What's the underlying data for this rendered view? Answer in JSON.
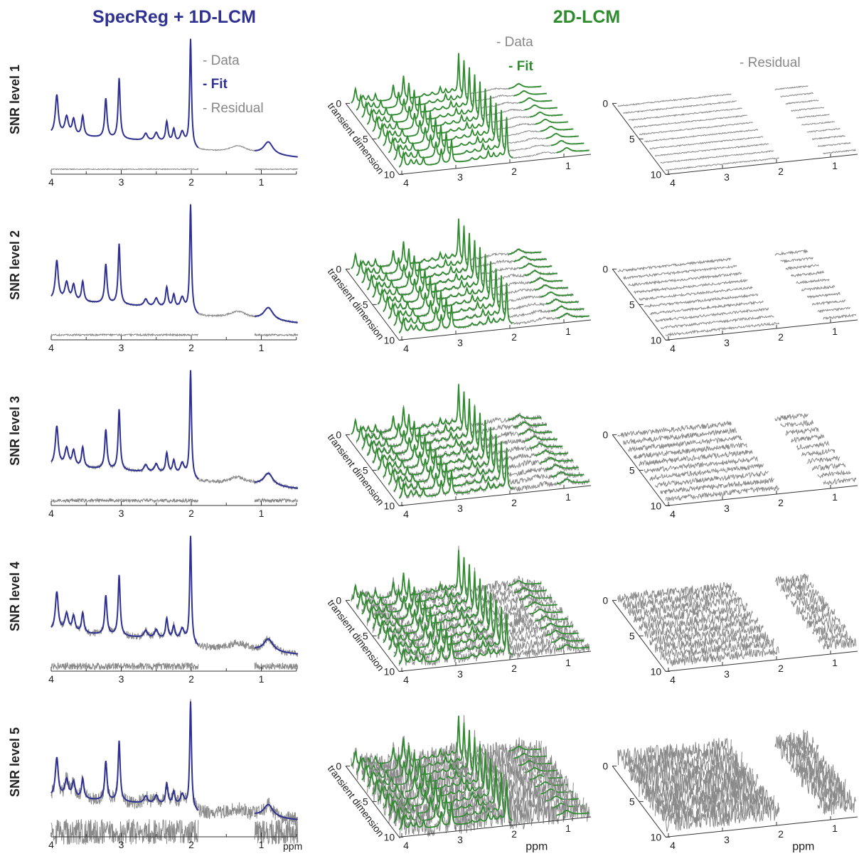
{
  "titles": {
    "left": "SpecReg + 1D-LCM",
    "right": "2D-LCM"
  },
  "legend_1d": {
    "data": "- Data",
    "fit": "- Fit",
    "residual": "- Residual"
  },
  "legend_2d": {
    "data": "- Data",
    "fit": "- Fit",
    "residual": "- Residual"
  },
  "rows": [
    "SNR level 1",
    "SNR level 2",
    "SNR level 3",
    "SNR level 4",
    "SNR level 5"
  ],
  "ppm_ticks": [
    4,
    3,
    2,
    1
  ],
  "transient_ticks": [
    0,
    5,
    10
  ],
  "axis_labels": {
    "ppm": "ppm",
    "transient": "transient dimension"
  }
}
